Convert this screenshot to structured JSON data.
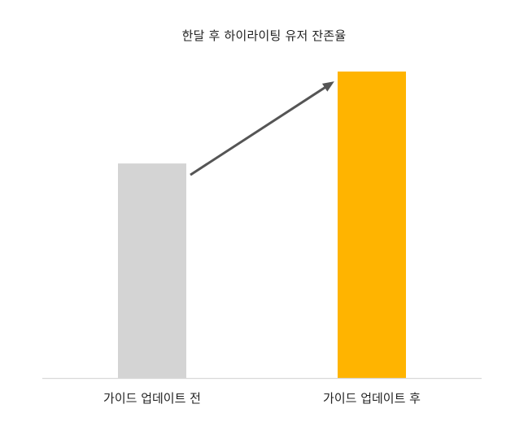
{
  "chart_data": {
    "type": "bar",
    "title": "한달 후 하이라이팅 유저 잔존율",
    "categories": [
      "가이드 업데이트 전",
      "가이드 업데이트 후"
    ],
    "values": [
      70,
      100
    ],
    "ylim": [
      0,
      100
    ],
    "colors": [
      "#d4d4d4",
      "#ffb400"
    ],
    "axis_color": "#d9d9d9",
    "arrow_color": "#555555",
    "grid": false,
    "legend": "none",
    "annotation": "arrow from first bar to second bar"
  }
}
